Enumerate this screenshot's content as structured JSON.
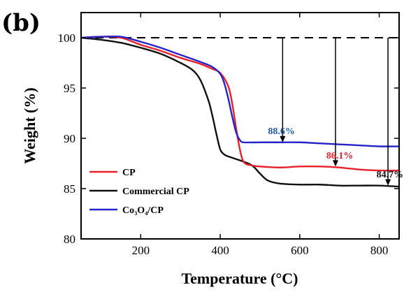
{
  "panel_label": "(b)",
  "chart_data": {
    "type": "line",
    "xlabel": "Temperature (°C)",
    "ylabel": "Weight (%)",
    "xlim": [
      50,
      850
    ],
    "ylim": [
      80,
      102.5
    ],
    "xticks": [
      200,
      400,
      600,
      800
    ],
    "yticks": [
      80,
      85,
      90,
      95,
      100
    ],
    "legend_position": "lower-left",
    "series": [
      {
        "name": "CP",
        "color": "#e8202a",
        "x": [
          50,
          100,
          150,
          200,
          250,
          300,
          350,
          380,
          400,
          420,
          430,
          440,
          450,
          460,
          480,
          500,
          550,
          600,
          650,
          700,
          750,
          800,
          850
        ],
        "y": [
          100.0,
          100.1,
          100.0,
          99.3,
          98.7,
          98.0,
          97.4,
          96.9,
          96.5,
          95.2,
          93.5,
          91.0,
          88.8,
          87.6,
          87.3,
          87.2,
          87.1,
          87.2,
          87.2,
          87.1,
          86.9,
          86.8,
          86.8
        ]
      },
      {
        "name": "Commercial CP",
        "color": "#111111",
        "x": [
          50,
          100,
          150,
          200,
          250,
          300,
          330,
          350,
          370,
          380,
          390,
          400,
          410,
          420,
          450,
          480,
          500,
          520,
          550,
          600,
          650,
          700,
          750,
          800,
          850
        ],
        "y": [
          100.0,
          99.8,
          99.5,
          99.0,
          98.4,
          97.5,
          96.8,
          95.8,
          93.8,
          92.3,
          90.5,
          88.9,
          88.4,
          88.2,
          87.8,
          87.3,
          86.5,
          85.8,
          85.5,
          85.4,
          85.4,
          85.3,
          85.3,
          85.3,
          85.2
        ]
      },
      {
        "name": "Co₃O₄/CP",
        "color": "#2424c8",
        "x": [
          50,
          100,
          150,
          200,
          250,
          300,
          350,
          380,
          400,
          410,
          420,
          430,
          440,
          450,
          460,
          500,
          550,
          600,
          650,
          700,
          750,
          800,
          850
        ],
        "y": [
          100.0,
          100.1,
          100.1,
          99.6,
          99.0,
          98.3,
          97.6,
          97.1,
          96.4,
          95.5,
          94.0,
          92.2,
          90.6,
          89.8,
          89.6,
          89.6,
          89.6,
          89.6,
          89.5,
          89.4,
          89.3,
          89.2,
          89.2
        ]
      }
    ],
    "reference_line": {
      "y": 100,
      "style": "dashed"
    },
    "annotations": [
      {
        "text": "88.6%",
        "color": "#1f5aa6",
        "x": 557,
        "y_from": 100,
        "y_to": 89.6,
        "label_x": 520,
        "label_y": 90.4
      },
      {
        "text": "86.1%",
        "color": "#e8202a",
        "x": 690,
        "y_from": 100,
        "y_to": 87.2,
        "label_x": 667,
        "label_y": 88.0
      },
      {
        "text": "84.7%",
        "color": "#111111",
        "x": 822,
        "y_from": 100,
        "y_to": 85.3,
        "label_x": 793,
        "label_y": 86.1
      }
    ]
  }
}
